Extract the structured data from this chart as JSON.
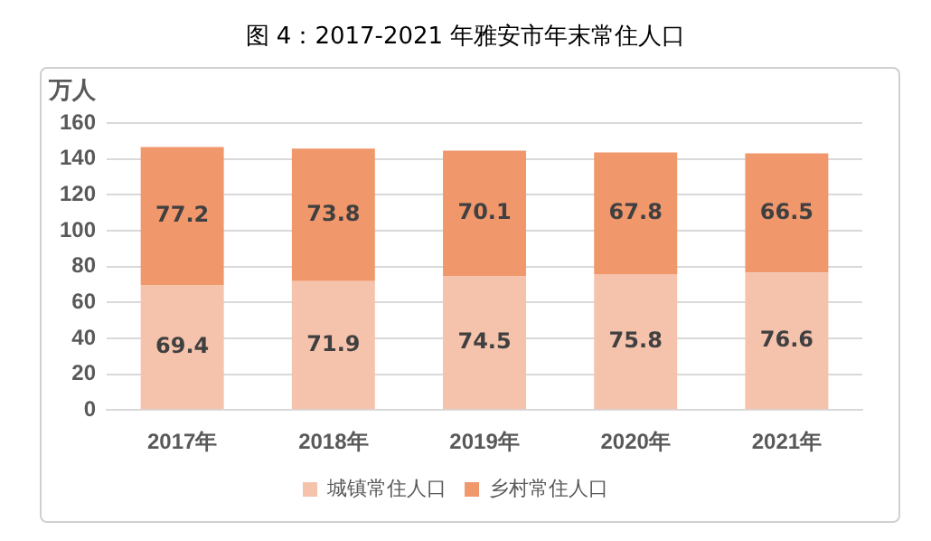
{
  "chart_data": {
    "type": "bar",
    "title": "图 4：2017-2021 年雅安市年末常住人口",
    "ylabel": "万人",
    "categories": [
      "2017年",
      "2018年",
      "2019年",
      "2020年",
      "2021年"
    ],
    "series": [
      {
        "name": "城镇常住人口",
        "color": "#f5c2ac",
        "values": [
          69.4,
          71.9,
          74.5,
          75.8,
          76.6
        ]
      },
      {
        "name": "乡村常住人口",
        "color": "#f0976c",
        "values": [
          77.2,
          73.8,
          70.1,
          67.8,
          66.5
        ]
      }
    ],
    "stacked": true,
    "ylim": [
      0,
      160
    ],
    "yticks": [
      0,
      20,
      40,
      60,
      80,
      100,
      120,
      140,
      160
    ],
    "grid": "y",
    "legend": "bottom",
    "data_labels": true
  }
}
